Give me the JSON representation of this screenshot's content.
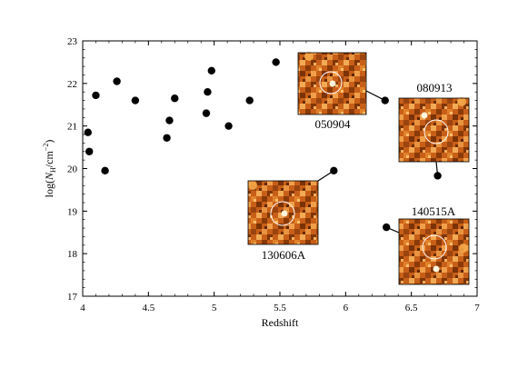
{
  "chart_data": {
    "type": "scatter",
    "title": "",
    "xlabel": "Redshift",
    "ylabel_parts": {
      "prefix": "log(",
      "symbol": "N",
      "subscript": "H",
      "unit": "/cm",
      "power": "−2",
      "suffix": ")"
    },
    "xlim": [
      4,
      7
    ],
    "ylim": [
      17,
      23
    ],
    "x_ticks": [
      4,
      4.5,
      5,
      5.5,
      6,
      6.5,
      7
    ],
    "x_tick_labels": [
      "4",
      "4.5",
      "5",
      "5.5",
      "6",
      "6.5",
      "7"
    ],
    "y_ticks": [
      17,
      18,
      19,
      20,
      21,
      22,
      23
    ],
    "y_tick_labels": [
      "17",
      "18",
      "19",
      "20",
      "21",
      "22",
      "23"
    ],
    "grid": false,
    "legend": "none",
    "marker_color": "#000000",
    "points": [
      {
        "x": 4.04,
        "y": 20.85
      },
      {
        "x": 4.05,
        "y": 20.4
      },
      {
        "x": 4.1,
        "y": 21.72
      },
      {
        "x": 4.17,
        "y": 19.95
      },
      {
        "x": 4.26,
        "y": 22.05
      },
      {
        "x": 4.4,
        "y": 21.6
      },
      {
        "x": 4.64,
        "y": 20.72
      },
      {
        "x": 4.66,
        "y": 21.13
      },
      {
        "x": 4.7,
        "y": 21.65
      },
      {
        "x": 4.94,
        "y": 21.3
      },
      {
        "x": 4.95,
        "y": 21.8
      },
      {
        "x": 4.98,
        "y": 22.3
      },
      {
        "x": 5.11,
        "y": 21.0
      },
      {
        "x": 5.27,
        "y": 21.6
      },
      {
        "x": 5.47,
        "y": 22.5
      },
      {
        "x": 5.91,
        "y": 19.95
      },
      {
        "x": 6.3,
        "y": 21.6
      },
      {
        "x": 6.31,
        "y": 18.62
      },
      {
        "x": 6.7,
        "y": 19.83
      }
    ],
    "annotations": [
      {
        "label": "050904",
        "x": 6.3,
        "y": 21.6
      },
      {
        "label": "080913",
        "x": 6.7,
        "y": 19.83
      },
      {
        "label": "130606A",
        "x": 5.91,
        "y": 19.95
      },
      {
        "label": "140515A",
        "x": 6.31,
        "y": 18.62
      }
    ],
    "inset_colors": {
      "dark": "#7a3206",
      "mid": "#d4691b",
      "light": "#f5a649",
      "bright": "#fff4dc",
      "circle": "#ffffff"
    }
  }
}
